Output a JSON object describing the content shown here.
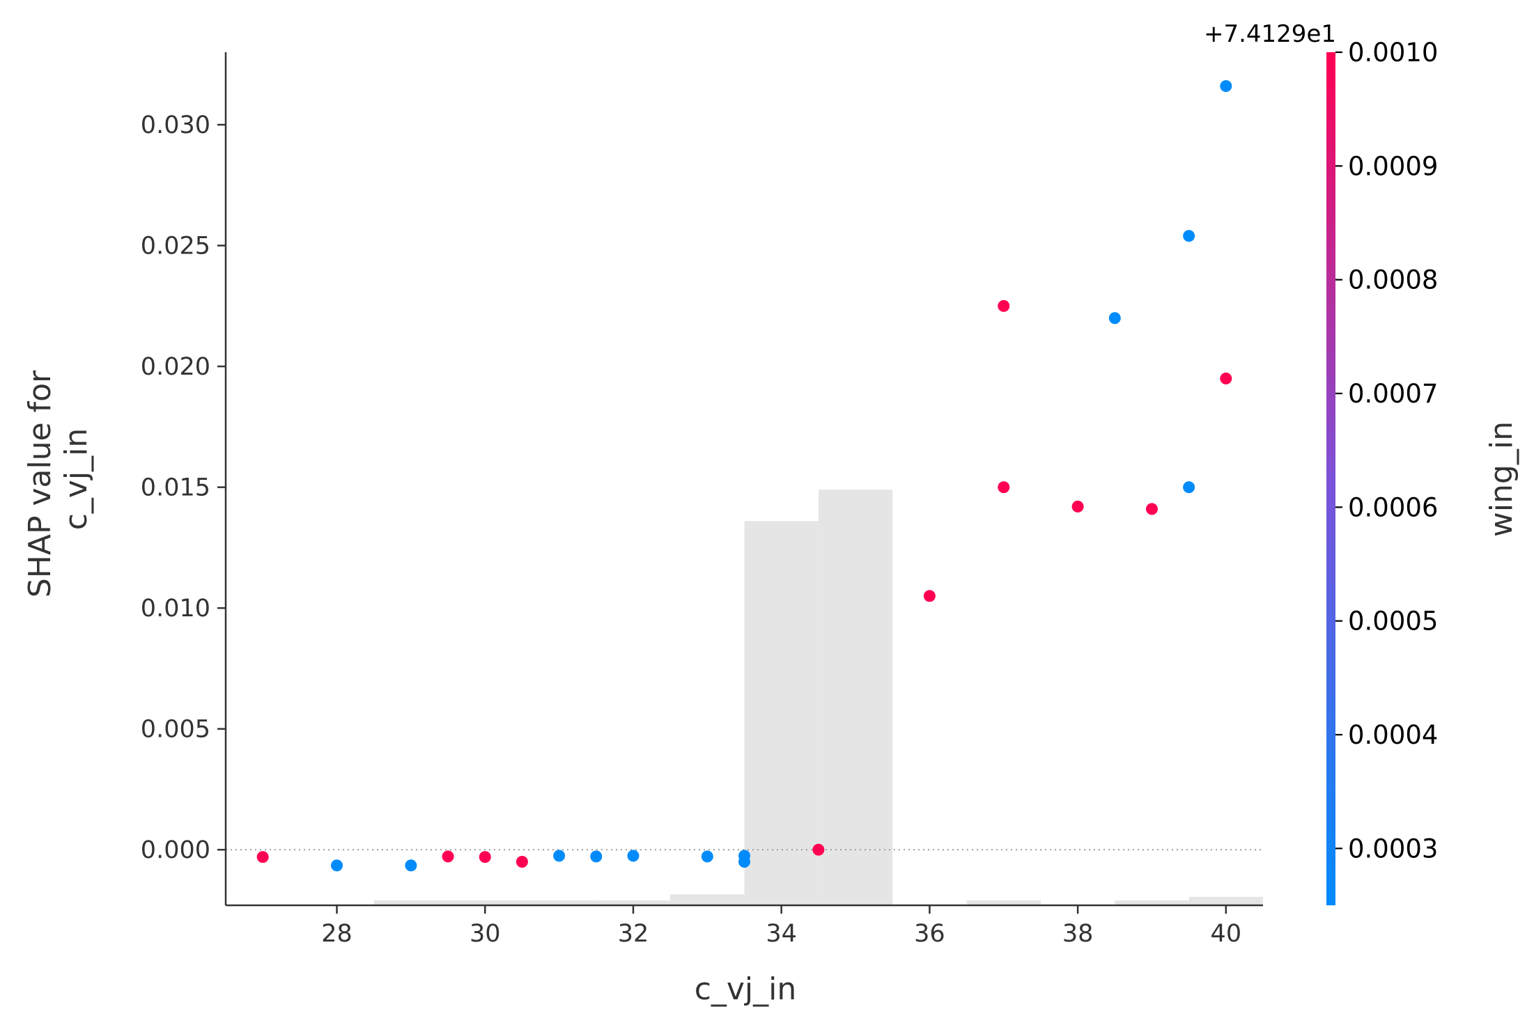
{
  "chart_data": {
    "type": "scatter",
    "title": "",
    "xlabel": "c_vj_in",
    "ylabel_lines": [
      "SHAP value for",
      "c_vj_in"
    ],
    "xlim": [
      26.5,
      40.5
    ],
    "ylim": [
      -0.0023,
      0.033
    ],
    "x_ticks": [
      28,
      30,
      32,
      34,
      36,
      38,
      40
    ],
    "x_tick_labels": [
      "28",
      "30",
      "32",
      "34",
      "36",
      "38",
      "40"
    ],
    "y_ticks": [
      0.0,
      0.005,
      0.01,
      0.015,
      0.02,
      0.025,
      0.03
    ],
    "y_tick_labels": [
      "0.000",
      "0.005",
      "0.010",
      "0.015",
      "0.020",
      "0.025",
      "0.030"
    ],
    "grid": false,
    "zero_line": true,
    "histogram": {
      "bins": [
        {
          "x0": 28.5,
          "x1": 29.5,
          "height": 0.0002
        },
        {
          "x0": 29.5,
          "x1": 30.5,
          "height": 0.0002
        },
        {
          "x0": 30.5,
          "x1": 31.5,
          "height": 0.0002
        },
        {
          "x0": 31.5,
          "x1": 32.5,
          "height": 0.0002
        },
        {
          "x0": 32.5,
          "x1": 33.5,
          "height": 0.00045
        },
        {
          "x0": 33.5,
          "x1": 34.5,
          "height": 0.0159
        },
        {
          "x0": 34.5,
          "x1": 35.5,
          "height": 0.0172
        },
        {
          "x0": 36.5,
          "x1": 37.5,
          "height": 0.0002
        },
        {
          "x0": 38.5,
          "x1": 39.5,
          "height": 0.0002
        },
        {
          "x0": 39.5,
          "x1": 40.5,
          "height": 0.00035
        }
      ],
      "color": "#e5e5e5"
    },
    "points": [
      {
        "x": 27.0,
        "y": -0.0003,
        "c": 0.001
      },
      {
        "x": 28.0,
        "y": -0.00065,
        "c": 0.00025
      },
      {
        "x": 29.0,
        "y": -0.00065,
        "c": 0.00025
      },
      {
        "x": 29.5,
        "y": -0.00028,
        "c": 0.001
      },
      {
        "x": 30.0,
        "y": -0.0003,
        "c": 0.001
      },
      {
        "x": 30.5,
        "y": -0.0005,
        "c": 0.001
      },
      {
        "x": 31.0,
        "y": -0.00025,
        "c": 0.00025
      },
      {
        "x": 31.5,
        "y": -0.00028,
        "c": 0.00025
      },
      {
        "x": 32.0,
        "y": -0.00025,
        "c": 0.00025
      },
      {
        "x": 33.0,
        "y": -0.00028,
        "c": 0.00025
      },
      {
        "x": 33.5,
        "y": -0.00025,
        "c": 0.00025
      },
      {
        "x": 33.5,
        "y": -0.0005,
        "c": 0.00025
      },
      {
        "x": 34.5,
        "y": 0.0,
        "c": 0.001
      },
      {
        "x": 36.0,
        "y": 0.0105,
        "c": 0.001
      },
      {
        "x": 37.0,
        "y": 0.0225,
        "c": 0.001
      },
      {
        "x": 37.0,
        "y": 0.015,
        "c": 0.001
      },
      {
        "x": 38.0,
        "y": 0.0142,
        "c": 0.001
      },
      {
        "x": 38.5,
        "y": 0.022,
        "c": 0.00025
      },
      {
        "x": 39.0,
        "y": 0.0141,
        "c": 0.001
      },
      {
        "x": 39.5,
        "y": 0.0254,
        "c": 0.00025
      },
      {
        "x": 39.5,
        "y": 0.015,
        "c": 0.00025
      },
      {
        "x": 40.0,
        "y": 0.0316,
        "c": 0.00025
      },
      {
        "x": 40.0,
        "y": 0.0195,
        "c": 0.001
      }
    ],
    "colorbar": {
      "label": "wing_in",
      "offset_text": "+7.4129e1",
      "range": [
        0.00025,
        0.001
      ],
      "ticks": [
        0.0003,
        0.0004,
        0.0005,
        0.0006,
        0.0007,
        0.0008,
        0.0009,
        0.001
      ],
      "tick_labels": [
        "0.0003",
        "0.0004",
        "0.0005",
        "0.0006",
        "0.0007",
        "0.0008",
        "0.0009",
        "0.0010"
      ],
      "color_low": "#008bfb",
      "color_mid": "#7c52d9",
      "color_high": "#ff0052"
    }
  }
}
